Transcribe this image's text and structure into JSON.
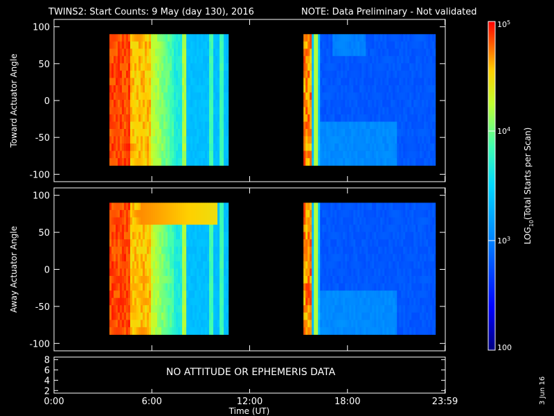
{
  "title": {
    "main": "TWINS2: Start Counts:  9 May (day 130), 2016",
    "note": "NOTE: Data Preliminary - Not validated",
    "note_color": "#ff2020"
  },
  "chart_data": [
    {
      "type": "heatmap",
      "ylabel": "Toward Actuator Angle",
      "ylim": [
        -110,
        110
      ],
      "yticks": [
        -100,
        -50,
        0,
        50,
        100
      ],
      "xlim_hours": [
        0,
        24
      ],
      "data_blocks_hours": [
        [
          3.4,
          10.7
        ],
        [
          15.3,
          23.4
        ]
      ],
      "data_angle_range": [
        -88,
        90
      ],
      "description_values": {
        "block1_log10_counts_range": [
          3.2,
          5.0
        ],
        "block2_log10_counts_range": [
          2.5,
          3.3
        ]
      }
    },
    {
      "type": "heatmap",
      "ylabel": "Away Actuator Angle",
      "ylim": [
        -110,
        110
      ],
      "yticks": [
        -100,
        -50,
        0,
        50,
        100
      ],
      "xlim_hours": [
        0,
        24
      ],
      "data_blocks_hours": [
        [
          3.4,
          10.7
        ],
        [
          15.3,
          23.4
        ]
      ],
      "data_angle_range": [
        -88,
        90
      ],
      "description_values": {
        "block1_log10_counts_range": [
          3.2,
          5.0
        ],
        "block2_log10_counts_range": [
          2.5,
          3.3
        ]
      }
    },
    {
      "type": "line",
      "yticks": [
        2,
        4,
        6,
        8
      ],
      "ylim": [
        1.5,
        8.5
      ],
      "message": "NO ATTITUDE OR EPHEMERIS DATA"
    }
  ],
  "xaxis": {
    "label": "Time (UT)",
    "ticks": [
      {
        "hour": 0,
        "label": "0:00"
      },
      {
        "hour": 6,
        "label": "6:00"
      },
      {
        "hour": 12,
        "label": "12:00"
      },
      {
        "hour": 18,
        "label": "18:00"
      },
      {
        "hour": 23.98,
        "label": "23:59"
      }
    ]
  },
  "colorbar": {
    "label_prefix": "LOG",
    "label_sub": "10",
    "label_suffix": "(Total Starts per Scan)",
    "scale": "log",
    "range": [
      100,
      100000
    ],
    "ticks": [
      {
        "value": 100,
        "label": "100"
      },
      {
        "value": 1000,
        "label_base": "10",
        "label_exp": "3"
      },
      {
        "value": 10000,
        "label_base": "10",
        "label_exp": "4"
      },
      {
        "value": 100000,
        "label_base": "10",
        "label_exp": "5"
      }
    ]
  },
  "footer": {
    "date_stamp": "3 Jun 16"
  }
}
